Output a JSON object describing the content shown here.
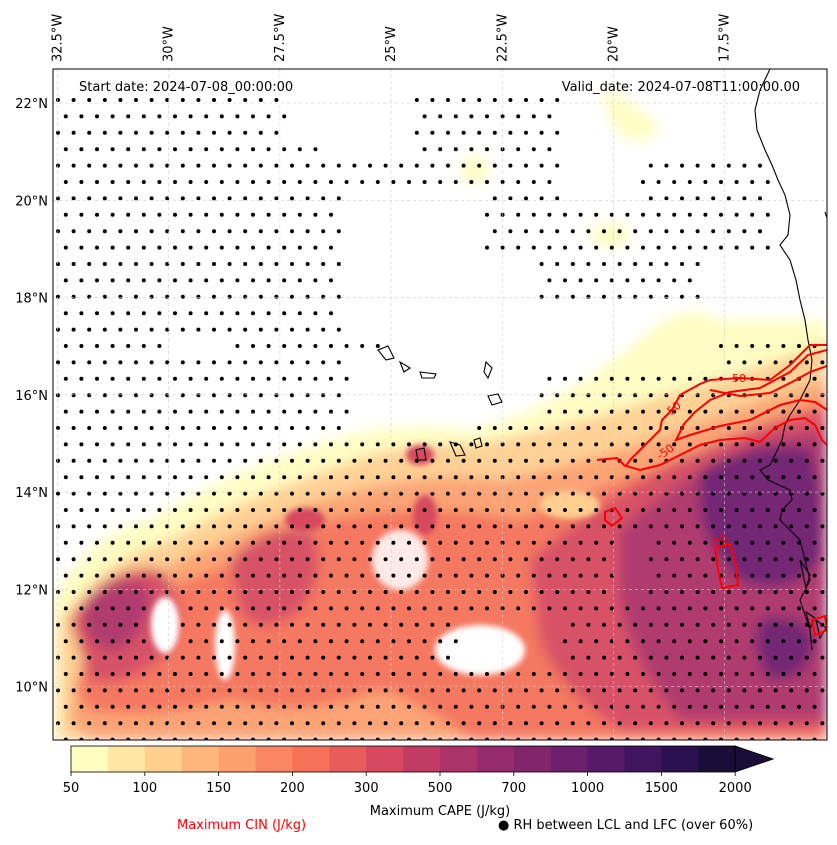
{
  "header": {
    "start_date": "Start date: 2024-07-08_00:00:00",
    "valid_date": "Valid_date: 2024-07-08T11:00:00.00"
  },
  "map": {
    "lon_labels": [
      {
        "value": -32.5,
        "text": "32.5°W"
      },
      {
        "value": -30.0,
        "text": "30°W"
      },
      {
        "value": -27.5,
        "text": "27.5°W"
      },
      {
        "value": -25.0,
        "text": "25°W"
      },
      {
        "value": -22.5,
        "text": "22.5°W"
      },
      {
        "value": -20.0,
        "text": "20°W"
      },
      {
        "value": -17.5,
        "text": "17.5°W"
      }
    ],
    "lat_labels": [
      {
        "value": 22,
        "text": "22°N"
      },
      {
        "value": 20,
        "text": "20°N"
      },
      {
        "value": 18,
        "text": "18°N"
      },
      {
        "value": 16,
        "text": "16°N"
      },
      {
        "value": 14,
        "text": "14°N"
      },
      {
        "value": 12,
        "text": "12°N"
      },
      {
        "value": 10,
        "text": "10°N"
      }
    ],
    "lon_range": [
      -32.6,
      -15.2
    ],
    "lat_range": [
      8.9,
      22.7
    ],
    "cin_contour_labels": [
      "-50",
      "-50",
      "-50",
      "-50"
    ],
    "colors": {
      "cin_contour": "#ff0000",
      "coastline": "#000000",
      "dots": "#000000"
    }
  },
  "colorbar": {
    "ticks": [
      "50",
      "100",
      "150",
      "200",
      "300",
      "500",
      "700",
      "1000",
      "1500",
      "2000"
    ],
    "label": "Maximum CAPE (J/kg)",
    "colors": [
      "#fffdc0",
      "#fee6a4",
      "#fecf8f",
      "#fdb67c",
      "#fca06e",
      "#fb8762",
      "#f57158",
      "#e85d5a",
      "#d6495f",
      "#c13c65",
      "#ac3368",
      "#962c6b",
      "#82266c",
      "#6c1f6d",
      "#571a6a",
      "#411460",
      "#2b1150",
      "#1a0d38"
    ],
    "extend_color": "#1a0d38"
  },
  "legend": {
    "cin_label": "Maximum CIN (J/kg)",
    "rh_label": "RH between LCL and LFC (over 60%)",
    "cin_color": "#ff0000"
  }
}
